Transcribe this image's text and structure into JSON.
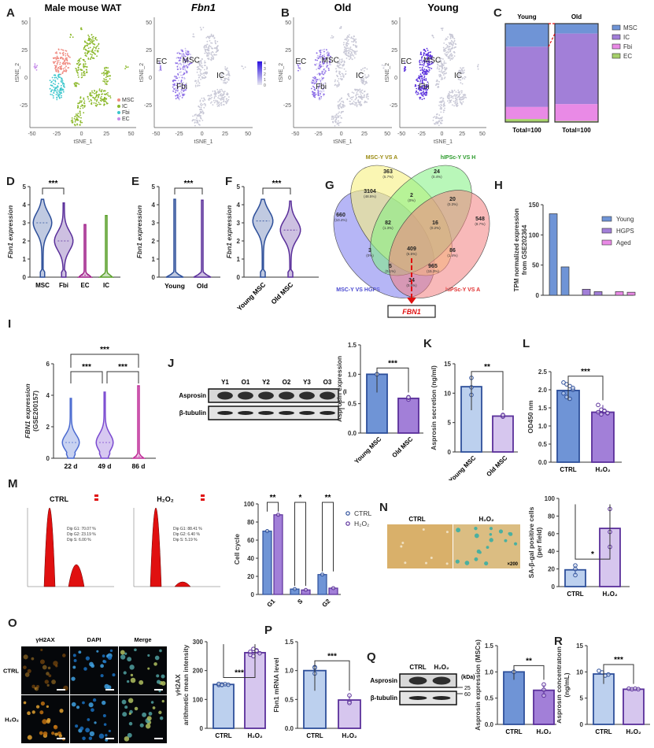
{
  "panel_labels": {
    "A": "A",
    "B": "B",
    "C": "C",
    "D": "D",
    "E": "E",
    "F": "F",
    "G": "G",
    "H": "H",
    "I": "I",
    "J": "J",
    "K": "K",
    "L": "L",
    "M": "M",
    "N": "N",
    "O": "O",
    "P": "P",
    "Q": "Q",
    "R": "R"
  },
  "colors": {
    "msc": "#f08a80",
    "ic": "#8bb82a",
    "fbi": "#3bc6cc",
    "ec": "#c58bea",
    "fbn": "#6a3ee0",
    "grey": "#c8c8d6",
    "blue": "#6f94d6",
    "blue_edge": "#2d4f9a",
    "purple": "#a27fd8",
    "purple_edge": "#5a2f9a",
    "pink": "#e98ae6",
    "green": "#a6d06a",
    "light_blue": "#bcd0ee",
    "light_purple": "#d6c6ee",
    "red": "#e01010"
  },
  "tsne": {
    "xlabel": "tSNE_1",
    "ylabel": "tSNE_2",
    "xticks": [
      "-50",
      "-25",
      "0",
      "25",
      "50"
    ],
    "yticks": [
      "50",
      "25",
      "0",
      "-25"
    ],
    "panelA1": {
      "title": "Male mouse WAT",
      "legend": [
        "MSC",
        "IC",
        "Fbi",
        "EC"
      ]
    },
    "panelA2": {
      "title": "Fbn1",
      "scale": [
        "4",
        "3",
        "2",
        "1",
        "0"
      ],
      "labels": [
        "EC",
        "MSC",
        "Fbi",
        "IC"
      ]
    },
    "panelB1": {
      "title": "Old",
      "labels": [
        "EC",
        "MSC",
        "Fbi",
        "IC"
      ]
    },
    "panelB2": {
      "title": "Young",
      "labels": [
        "EC",
        "MSC",
        "Fbi",
        "IC"
      ],
      "side_label": "Fbn1"
    }
  },
  "chart_data": [
    {
      "id": "C",
      "type": "bar",
      "stacked": true,
      "categories": [
        "Young",
        "Old"
      ],
      "series": [
        {
          "name": "MSC",
          "values": [
            23,
            10
          ]
        },
        {
          "name": "IC",
          "values": [
            60,
            71
          ]
        },
        {
          "name": "Fbi",
          "values": [
            12,
            17
          ]
        },
        {
          "name": "EC",
          "values": [
            3,
            1
          ]
        }
      ],
      "footer": [
        "Total=100",
        "Total=100"
      ],
      "legend": "right"
    },
    {
      "id": "D",
      "type": "violin",
      "categories": [
        "MSC",
        "Fbi",
        "EC",
        "IC"
      ],
      "ylabel": "Fbn1 expression",
      "yticks": [
        "0",
        "1",
        "2",
        "3",
        "4",
        "5"
      ],
      "ylim": [
        0,
        5
      ],
      "max": [
        4.3,
        4.1,
        2.9,
        3.4
      ],
      "median": [
        3.0,
        2.0,
        0.1,
        0.0
      ],
      "sig": [
        {
          "from": 0,
          "to": 1,
          "label": "***"
        }
      ]
    },
    {
      "id": "E",
      "type": "violin",
      "categories": [
        "Young",
        "Old"
      ],
      "ylabel": "Fbn1 expression",
      "yticks": [
        "0",
        "1",
        "2",
        "3",
        "4",
        "5"
      ],
      "ylim": [
        0,
        5
      ],
      "max": [
        4.3,
        4.25
      ],
      "median": [
        0.0,
        0.0
      ],
      "sig": [
        {
          "from": 0,
          "to": 1,
          "label": "***"
        }
      ]
    },
    {
      "id": "F",
      "type": "violin",
      "categories": [
        "Young MSC",
        "Old MSC"
      ],
      "ylabel": "Fbn1 expression",
      "yticks": [
        "0",
        "1",
        "2",
        "3",
        "4",
        "5"
      ],
      "ylim": [
        0,
        5
      ],
      "max": [
        4.3,
        4.2
      ],
      "median": [
        3.1,
        2.6
      ],
      "sig": [
        {
          "from": 0,
          "to": 1,
          "label": "***"
        }
      ]
    },
    {
      "id": "H",
      "type": "bar",
      "ylabel": "TPM normalized expression",
      "ylabel2": "from GSE202364",
      "yticks": [
        "0",
        "50",
        "100",
        "150"
      ],
      "ylim": [
        0,
        150
      ],
      "groups": [
        {
          "name": "Young",
          "values": [
            135,
            47
          ]
        },
        {
          "name": "HGPS",
          "values": [
            10,
            6
          ]
        },
        {
          "name": "Aged",
          "values": [
            6,
            5
          ]
        }
      ],
      "legend": "top-right"
    },
    {
      "id": "I",
      "type": "violin",
      "categories": [
        "22 d",
        "49 d",
        "86 d"
      ],
      "ylabel": "FBN1 expression",
      "ylabel2": "(GSE200157)",
      "yticks": [
        "0",
        "2",
        "4",
        "6"
      ],
      "ylim": [
        0,
        6
      ],
      "max": [
        3.8,
        4.2,
        4.6
      ],
      "median": [
        1.0,
        1.0,
        0.1
      ],
      "sig": [
        {
          "from": 0,
          "to": 1,
          "label": "***"
        },
        {
          "from": 1,
          "to": 2,
          "label": "***"
        },
        {
          "from": 0,
          "to": 2,
          "label": "***"
        }
      ]
    },
    {
      "id": "J",
      "type": "bar",
      "categories": [
        "Young MSC",
        "Old MSC"
      ],
      "values": [
        1.0,
        0.59
      ],
      "ylabel": "Asprosin expression",
      "yticks": [
        "0.0",
        "0.5",
        "1.0",
        "1.5"
      ],
      "ylim": [
        0,
        1.5
      ],
      "points": [
        [
          1.0,
          1.0,
          1.0
        ],
        [
          0.57,
          0.6,
          0.61
        ]
      ],
      "sig": "***"
    },
    {
      "id": "K",
      "type": "bar",
      "categories": [
        "Young MSC",
        "Old MSC"
      ],
      "values": [
        11.1,
        6.1
      ],
      "ylabel": "Asprosin secretion (ng/ml)",
      "yticks": [
        "0",
        "5",
        "10",
        "15"
      ],
      "ylim": [
        0,
        15
      ],
      "points": [
        [
          12.6,
          11.0,
          9.7
        ],
        [
          6.0,
          6.2,
          6.3
        ]
      ],
      "sig": "**"
    },
    {
      "id": "L",
      "type": "bar",
      "categories": [
        "CTRL",
        "H₂O₂"
      ],
      "values": [
        1.98,
        1.38
      ],
      "ylabel": "OD450 nm",
      "yticks": [
        "0.0",
        "0.5",
        "1.0",
        "1.5",
        "2.0",
        "2.5"
      ],
      "ylim": [
        0,
        2.5
      ],
      "points": [
        [
          2.2,
          2.15,
          2.1,
          2.0,
          1.9,
          1.8,
          1.75,
          2.05
        ],
        [
          1.58,
          1.45,
          1.4,
          1.35,
          1.38,
          1.32,
          1.42,
          1.36
        ]
      ],
      "sig": "***"
    },
    {
      "id": "M",
      "type": "bar",
      "categories": [
        "G1",
        "S",
        "G2"
      ],
      "ylabel": "Cell cycle",
      "yticks": [
        "0",
        "20",
        "40",
        "60",
        "80",
        "100"
      ],
      "ylim": [
        0,
        100
      ],
      "series": [
        {
          "name": "CTRL",
          "values": [
            70,
            6,
            22
          ]
        },
        {
          "name": "H₂O₂",
          "values": [
            88,
            5,
            7
          ]
        }
      ],
      "sig": [
        "**",
        "*",
        "**"
      ],
      "legend": "right"
    },
    {
      "id": "N",
      "type": "bar",
      "categories": [
        "CTRL",
        "H₂O₂"
      ],
      "values": [
        19,
        66
      ],
      "ylabel": "SA-β-gal positive cells",
      "ylabel2": "(per field)",
      "yticks": [
        "0",
        "20",
        "40",
        "60",
        "80",
        "100"
      ],
      "ylim": [
        0,
        100
      ],
      "points": [
        [
          24,
          13,
          20
        ],
        [
          88,
          62,
          45
        ]
      ],
      "sig": "*"
    },
    {
      "id": "O",
      "type": "bar",
      "categories": [
        "CTRL",
        "H₂O₂"
      ],
      "values": [
        152,
        262
      ],
      "ylabel": "γH2AX",
      "ylabel2": "arithmetic mean intensity",
      "yticks": [
        "0",
        "100",
        "200",
        "300"
      ],
      "ylim": [
        0,
        300
      ],
      "points": [
        [
          150,
          152,
          153,
          151,
          154,
          150
        ],
        [
          255,
          275,
          270,
          260,
          265,
          250,
          268
        ]
      ],
      "sig": "***"
    },
    {
      "id": "P",
      "type": "bar",
      "categories": [
        "CTRL",
        "H₂O₂"
      ],
      "values": [
        1.0,
        0.49
      ],
      "ylabel": "Fbn1 mRNA level",
      "yticks": [
        "0.0",
        "0.5",
        "1.0",
        "1.5"
      ],
      "ylim": [
        0,
        1.5
      ],
      "points": [
        [
          1.06,
          1.05,
          0.95
        ],
        [
          0.57,
          0.46,
          0.44
        ]
      ],
      "sig": "***"
    },
    {
      "id": "Q",
      "type": "bar",
      "categories": [
        "CTRL",
        "H₂O₂"
      ],
      "values": [
        1.0,
        0.65
      ],
      "ylabel": "Asprosin expression (MSCs)",
      "yticks": [
        "0.0",
        "0.5",
        "1.0",
        "1.5"
      ],
      "ylim": [
        0,
        1.5
      ],
      "points": [
        [
          1.0,
          1.0,
          1.0
        ],
        [
          0.76,
          0.66,
          0.55
        ]
      ],
      "sig": "**"
    },
    {
      "id": "R",
      "type": "bar",
      "categories": [
        "CTRL",
        "H₂O₂"
      ],
      "values": [
        9.6,
        6.7
      ],
      "ylabel": "Asprosin concentratioin",
      "ylabel2": "(ng/mL)",
      "yticks": [
        "0",
        "5",
        "10",
        "15"
      ],
      "ylim": [
        0,
        15
      ],
      "points": [
        [
          10.2,
          9.9,
          9.3,
          9.5
        ],
        [
          6.8,
          6.7,
          6.8,
          6.7
        ]
      ],
      "sig": "***"
    }
  ],
  "venn": {
    "sets": [
      "MSC-Y VS A",
      "hIPSc-Y VS H",
      "MSC-Y VS HGPS",
      "hIPSc-Y VS A"
    ],
    "regions": [
      {
        "n": "363",
        "p": "(5.7%)"
      },
      {
        "n": "24",
        "p": "(0.4%)"
      },
      {
        "n": "3104",
        "p": "(48.5%)"
      },
      {
        "n": "2",
        "p": "(0%)"
      },
      {
        "n": "20",
        "p": "(0.3%)"
      },
      {
        "n": "660",
        "p": "(10.4%)"
      },
      {
        "n": "82",
        "p": "(1.3%)"
      },
      {
        "n": "16",
        "p": "(0.2%)"
      },
      {
        "n": "548",
        "p": "(8.7%)"
      },
      {
        "n": "3",
        "p": "(0%)"
      },
      {
        "n": "409",
        "p": "(6.5%)"
      },
      {
        "n": "86",
        "p": "(1.4%)"
      },
      {
        "n": "5",
        "p": "(0.1%)"
      },
      {
        "n": "965",
        "p": "(15.3%)"
      },
      {
        "n": "34",
        "p": "(0.5%)"
      }
    ],
    "result": "FBN1"
  },
  "blotJ": {
    "lanes": [
      "Y1",
      "O1",
      "Y2",
      "O2",
      "Y3",
      "O3"
    ],
    "rows": [
      "Asprosin",
      "β-tubulin"
    ],
    "unit": "(kDa)",
    "markers": [
      "25",
      "60"
    ]
  },
  "blotQ": {
    "lanes": [
      "CTRL",
      "H₂O₂"
    ],
    "rows": [
      "Asprosin",
      "β-tubulin"
    ],
    "unit": "(kDa)",
    "markers": [
      "25",
      "60"
    ]
  },
  "flow": {
    "ctrl": {
      "title": "CTRL",
      "lines": [
        "Dip G1: 70.07 %",
        "Dip G2: 23.19 %",
        "Dip S: 6.00 %"
      ]
    },
    "h2o2": {
      "title": "H₂O₂",
      "lines": [
        "Dip G1: 88.41 %",
        "Dip G2: 6.40 %",
        "Dip S: 5.19 %"
      ]
    }
  },
  "stain": {
    "labels": [
      "CTRL",
      "H₂O₂"
    ],
    "mag": "×200"
  },
  "ifO": {
    "cols": [
      "γH2AX",
      "DAPI",
      "Merge"
    ],
    "rows": [
      "CTRL",
      "H₂O₂"
    ]
  }
}
